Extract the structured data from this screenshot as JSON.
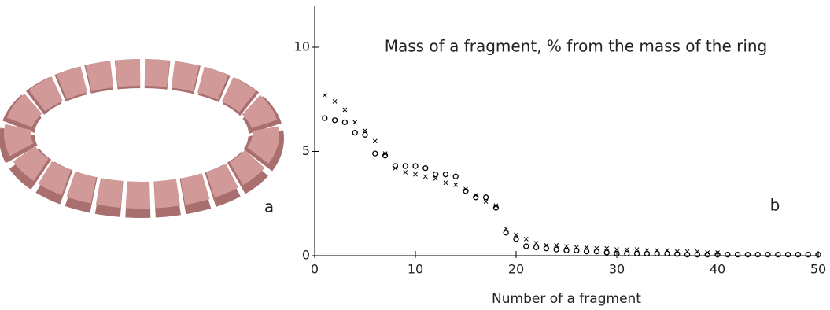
{
  "chart_data": {
    "type": "scatter",
    "annotation": "Mass of a fragment, % from the mass of the ring",
    "xlabel": "Number of a fragment",
    "panel_labels": [
      "a",
      "b"
    ],
    "xlim": [
      0,
      50
    ],
    "ylim": [
      0,
      12
    ],
    "xticks": [
      0,
      10,
      20,
      30,
      40,
      50
    ],
    "yticks": [
      0,
      5,
      10
    ],
    "series": [
      {
        "marker": "circle",
        "color": "#000000",
        "x": [
          1,
          2,
          3,
          4,
          5,
          6,
          7,
          8,
          9,
          10,
          11,
          12,
          13,
          14,
          15,
          16,
          17,
          18,
          19,
          20,
          21,
          22,
          23,
          24,
          25,
          26,
          27,
          28,
          29,
          30,
          31,
          32,
          33,
          34,
          35,
          36,
          37,
          38,
          39,
          40,
          41,
          42,
          43,
          44,
          45,
          46,
          47,
          48,
          49,
          50
        ],
        "values": [
          6.6,
          6.5,
          6.4,
          5.9,
          5.8,
          4.9,
          4.8,
          4.3,
          4.3,
          4.3,
          4.2,
          3.9,
          3.9,
          3.8,
          3.1,
          2.8,
          2.8,
          2.3,
          1.1,
          0.8,
          0.45,
          0.4,
          0.35,
          0.3,
          0.25,
          0.25,
          0.2,
          0.2,
          0.15,
          0.1,
          0.1,
          0.1,
          0.1,
          0.1,
          0.1,
          0.08,
          0.05,
          0.05,
          0.05,
          0.05,
          0.05,
          0.05,
          0.05,
          0.05,
          0.05,
          0.05,
          0.05,
          0.05,
          0.05,
          0.05
        ]
      },
      {
        "marker": "cross",
        "color": "#000000",
        "x": [
          1,
          2,
          3,
          4,
          5,
          6,
          7,
          8,
          9,
          10,
          11,
          12,
          13,
          14,
          15,
          16,
          17,
          18,
          19,
          20,
          21,
          22,
          23,
          24,
          25,
          26,
          27,
          28,
          29,
          30,
          31,
          32,
          33,
          34,
          35,
          36,
          37,
          38,
          39,
          40
        ],
        "values": [
          7.7,
          7.4,
          7.0,
          6.4,
          6.0,
          5.5,
          4.9,
          4.2,
          4.0,
          3.9,
          3.8,
          3.7,
          3.5,
          3.4,
          3.2,
          2.9,
          2.6,
          2.4,
          1.3,
          1.0,
          0.8,
          0.6,
          0.5,
          0.5,
          0.45,
          0.4,
          0.4,
          0.35,
          0.35,
          0.3,
          0.3,
          0.3,
          0.25,
          0.25,
          0.25,
          0.2,
          0.2,
          0.2,
          0.15,
          0.15
        ]
      }
    ]
  }
}
